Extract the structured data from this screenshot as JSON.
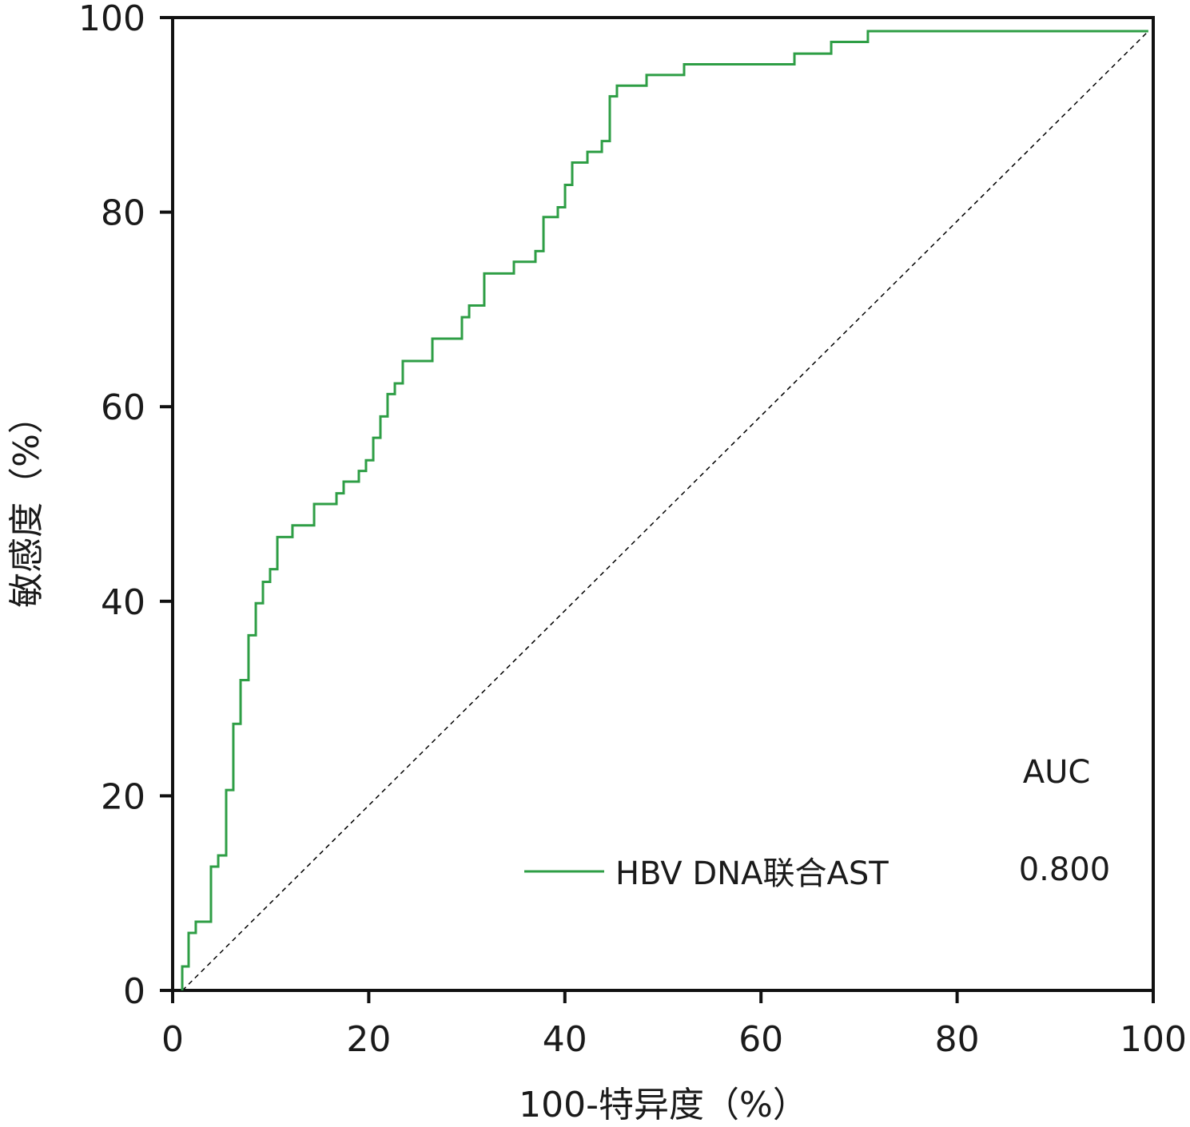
{
  "chart_data": {
    "type": "line",
    "title": "",
    "xlabel": "100-特异度（%）",
    "ylabel": "敏感度（%）",
    "xlim": [
      0,
      100
    ],
    "ylim": [
      0,
      100
    ],
    "xticks": [
      0,
      20,
      40,
      60,
      80,
      100
    ],
    "yticks": [
      0,
      20,
      40,
      60,
      80,
      100
    ],
    "grid": false,
    "legend_position": "bottom-right",
    "legend_header": "AUC",
    "series": [
      {
        "name": "HBV DNA联合AST",
        "color": "#2e9e45",
        "auc": "0.800",
        "step": true,
        "fpr": [
          0.98,
          1.63,
          2.36,
          3.91,
          4.65,
          5.46,
          6.19,
          6.93,
          7.74,
          8.48,
          9.21,
          9.94,
          10.68,
          12.22,
          14.43,
          16.71,
          17.44,
          18.99,
          19.72,
          20.46,
          21.19,
          21.92,
          22.66,
          23.47,
          26.49,
          29.5,
          30.24,
          31.78,
          34.8,
          37.0,
          37.82,
          39.28,
          40.02,
          40.75,
          42.3,
          43.77,
          44.58,
          45.31,
          48.33,
          52.16,
          63.41,
          67.16,
          70.9,
          99.5
        ],
        "tpr": [
          2.46,
          5.91,
          7.06,
          12.73,
          13.88,
          20.6,
          27.4,
          31.9,
          36.5,
          39.8,
          42.0,
          43.3,
          46.6,
          47.8,
          50.0,
          51.1,
          52.3,
          53.4,
          54.5,
          56.8,
          59.0,
          61.3,
          62.4,
          64.7,
          67.0,
          69.2,
          70.4,
          73.7,
          74.9,
          76.0,
          79.5,
          80.5,
          82.8,
          85.1,
          86.2,
          87.3,
          91.9,
          93.0,
          94.1,
          95.2,
          96.3,
          97.5,
          98.6,
          98.6
        ]
      }
    ],
    "reference_line": {
      "from": [
        1,
        0
      ],
      "to": [
        99.5,
        98.6
      ],
      "style": "dashed",
      "color": "#000000"
    }
  }
}
